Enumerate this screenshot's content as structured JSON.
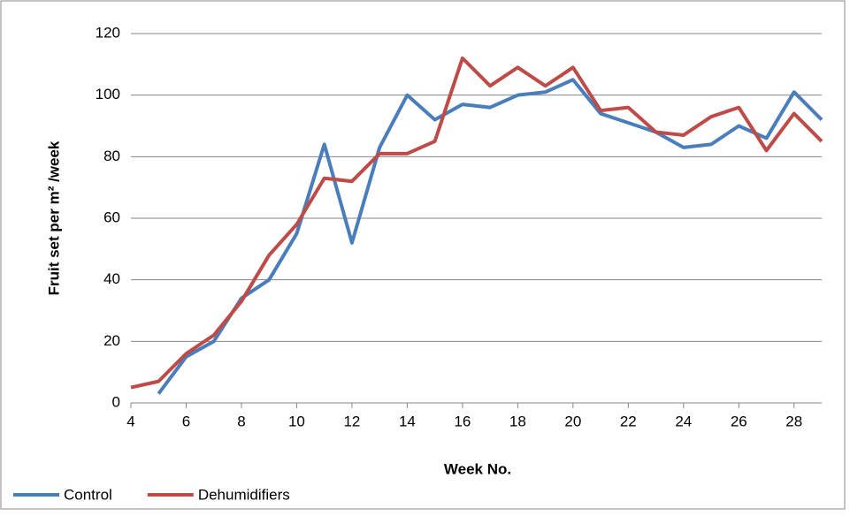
{
  "chart_data": {
    "type": "line",
    "x_label": "Week No.",
    "y_label": "Fruit set per m² /week",
    "x": [
      4,
      5,
      6,
      7,
      8,
      9,
      10,
      11,
      12,
      13,
      14,
      15,
      16,
      17,
      18,
      19,
      20,
      21,
      22,
      23,
      24,
      25,
      26,
      27,
      28,
      29
    ],
    "series": [
      {
        "name": "Control",
        "color": "#4a7ebb",
        "values": [
          null,
          3,
          15,
          20,
          34,
          40,
          55,
          84,
          52,
          83,
          100,
          92,
          97,
          96,
          100,
          101,
          105,
          94,
          91,
          88,
          83,
          84,
          90,
          86,
          101,
          92
        ]
      },
      {
        "name": "Dehumidifiers",
        "color": "#be4b48",
        "values": [
          5,
          7,
          16,
          22,
          33,
          48,
          58,
          73,
          72,
          81,
          81,
          85,
          112,
          103,
          109,
          103,
          109,
          95,
          96,
          88,
          87,
          93,
          96,
          82,
          94,
          85
        ]
      }
    ],
    "xlim": [
      4,
      29
    ],
    "xticks": [
      4,
      6,
      8,
      10,
      12,
      14,
      16,
      18,
      20,
      22,
      24,
      26,
      28
    ],
    "ylim": [
      0,
      120
    ],
    "yticks": [
      0,
      20,
      40,
      60,
      80,
      100,
      120
    ],
    "grid": true,
    "legend": "bottom-left"
  }
}
